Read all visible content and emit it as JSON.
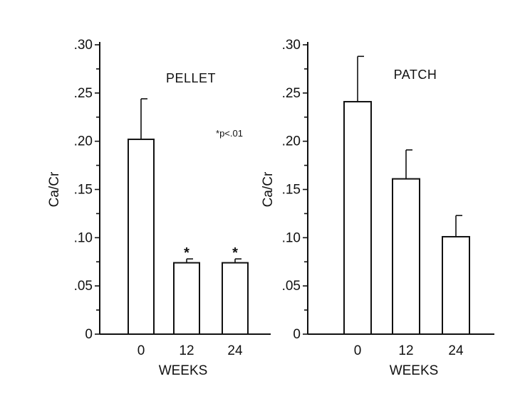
{
  "chart_data": [
    {
      "type": "bar",
      "title": "PELLET",
      "xlabel": "WEEKS",
      "ylabel": "Ca/Cr",
      "categories": [
        "0",
        "12",
        "24"
      ],
      "values": [
        0.202,
        0.074,
        0.074
      ],
      "errors": [
        0.042,
        0.004,
        0.004
      ],
      "significance": [
        "",
        "*",
        "*"
      ],
      "ylim": [
        0,
        0.3
      ],
      "yticks": [
        0,
        0.05,
        0.1,
        0.15,
        0.2,
        0.25,
        0.3
      ],
      "ytick_labels": [
        "0",
        ".05",
        ".10",
        ".15",
        ".20",
        ".25",
        ".30"
      ],
      "annotation": "*p<.01",
      "grid": false
    },
    {
      "type": "bar",
      "title": "PATCH",
      "xlabel": "WEEKS",
      "ylabel": "Ca/Cr",
      "categories": [
        "0",
        "12",
        "24"
      ],
      "values": [
        0.241,
        0.161,
        0.101
      ],
      "errors": [
        0.047,
        0.03,
        0.022
      ],
      "significance": [
        "",
        "",
        ""
      ],
      "ylim": [
        0,
        0.3
      ],
      "yticks": [
        0,
        0.05,
        0.1,
        0.15,
        0.2,
        0.25,
        0.3
      ],
      "ytick_labels": [
        "0",
        ".05",
        ".10",
        ".15",
        ".20",
        ".25",
        ".30"
      ],
      "grid": false
    }
  ]
}
